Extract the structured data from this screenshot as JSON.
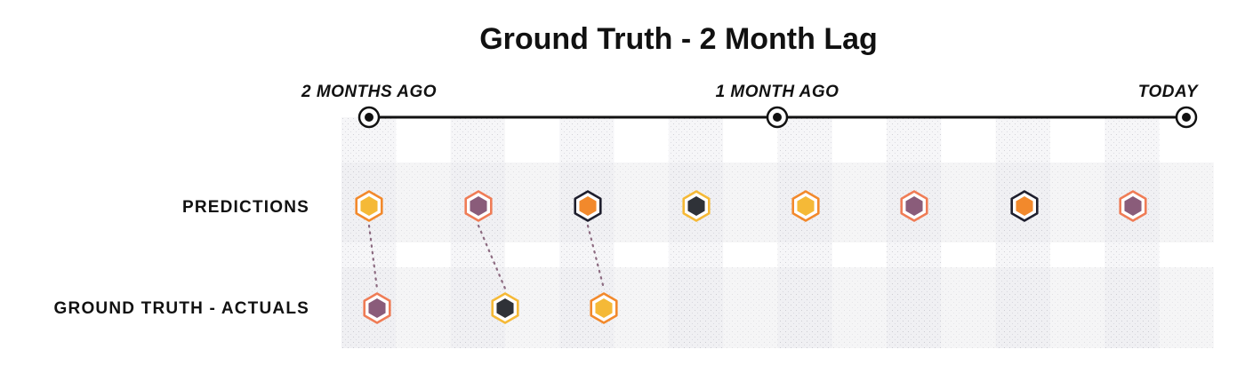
{
  "title": "Ground Truth - 2 Month Lag",
  "timeline": {
    "markers": [
      {
        "label": "2 MONTHS AGO"
      },
      {
        "label": "1 MONTH AGO"
      },
      {
        "label": "TODAY"
      }
    ]
  },
  "rows": {
    "predictions": {
      "label": "PREDICTIONS"
    },
    "actuals": {
      "label": "GROUND TRUTH - ACTUALS"
    }
  },
  "palette": {
    "yellow": "#f5b937",
    "purple": "#8a5c7a",
    "orange": "#f2892c",
    "dark": "#2f3238",
    "coral": "#ef7c56",
    "navy": "#1f1f2e",
    "connector": "#8c6a80",
    "timeline": "#111111",
    "shade": "#ececef"
  },
  "predictions": [
    {
      "fill": "yellow",
      "border": "orange"
    },
    {
      "fill": "purple",
      "border": "coral"
    },
    {
      "fill": "orange",
      "border": "navy"
    },
    {
      "fill": "dark",
      "border": "yellow"
    },
    {
      "fill": "yellow",
      "border": "orange"
    },
    {
      "fill": "purple",
      "border": "coral"
    },
    {
      "fill": "orange",
      "border": "navy"
    },
    {
      "fill": "purple",
      "border": "coral"
    }
  ],
  "actuals": [
    {
      "fill": "purple",
      "border": "coral"
    },
    {
      "fill": "dark",
      "border": "yellow"
    },
    {
      "fill": "yellow",
      "border": "orange"
    }
  ],
  "connections": [
    {
      "prediction": 0,
      "actual": 0
    },
    {
      "prediction": 1,
      "actual": 1
    },
    {
      "prediction": 2,
      "actual": 2
    }
  ]
}
